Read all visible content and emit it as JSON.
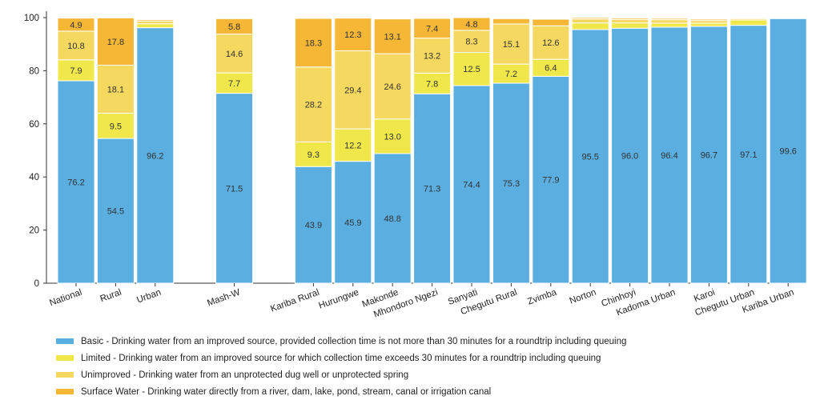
{
  "chart_data": {
    "type": "bar",
    "stacked": true,
    "ylim": [
      0,
      100
    ],
    "yticks": [
      0,
      20,
      40,
      60,
      80,
      100
    ],
    "grid": false,
    "legend_position": "bottom",
    "groups": [
      [
        "National",
        "Rural",
        "Urban"
      ],
      [
        "Mash-W"
      ],
      [
        "Kariba Rural",
        "Hurungwe",
        "Makonde",
        "Mhondoro Ngezi",
        "Sanyati",
        "Chegutu Rural",
        "Zvimba",
        "Norton",
        "Chinhoyi",
        "Kadoma Urban",
        "Karoi",
        "Chegutu Urban",
        "Kariba Urban"
      ]
    ],
    "categories": [
      "National",
      "Rural",
      "Urban",
      "Mash-W",
      "Kariba Rural",
      "Hurungwe",
      "Makonde",
      "Mhondoro Ngezi",
      "Sanyati",
      "Chegutu Rural",
      "Zvimba",
      "Norton",
      "Chinhoyi",
      "Kadoma Urban",
      "Karoi",
      "Chegutu Urban",
      "Kariba Urban"
    ],
    "series": [
      {
        "name": "Basic - Drinking water from an improved source, provided collection time is not more than 30 minutes for a roundtrip including queuing",
        "color": "#5aaee0",
        "values": [
          76.2,
          54.5,
          96.2,
          71.5,
          43.9,
          45.9,
          48.8,
          71.3,
          74.4,
          75.3,
          77.9,
          95.5,
          96.0,
          96.4,
          96.7,
          97.1,
          99.6
        ]
      },
      {
        "name": "Limited - Drinking water from an improved source for which collection time exceeds 30 minutes for a roundtrip including queuing",
        "color": "#f0e84a",
        "values": [
          7.9,
          9.5,
          1.5,
          7.7,
          9.3,
          12.2,
          13.0,
          7.8,
          12.5,
          7.2,
          6.4,
          2.5,
          2.0,
          1.5,
          1.2,
          2.0,
          0.0
        ]
      },
      {
        "name": "Unimproved - Drinking water from an unprotected dug well or unprotected spring",
        "color": "#f5d860",
        "values": [
          10.8,
          18.1,
          1.0,
          14.6,
          28.2,
          29.4,
          24.6,
          13.2,
          8.3,
          15.1,
          12.6,
          1.5,
          1.3,
          1.3,
          1.0,
          0.5,
          0.0
        ]
      },
      {
        "name": "Surface Water - Drinking water directly from a river, dam, lake, pond, stream, canal or irrigation canal",
        "color": "#f5b735",
        "values": [
          4.9,
          17.8,
          0.5,
          5.8,
          18.3,
          12.3,
          13.1,
          7.4,
          4.8,
          2.0,
          2.5,
          0.5,
          0.5,
          0.5,
          0.5,
          0.0,
          0.0
        ]
      }
    ],
    "labeled": [
      [
        true,
        true,
        true,
        true,
        true,
        true,
        true,
        true,
        true,
        true,
        true,
        true,
        true,
        true,
        true,
        true,
        true
      ],
      [
        true,
        true,
        false,
        true,
        true,
        true,
        true,
        true,
        true,
        true,
        true,
        false,
        false,
        false,
        false,
        false,
        false
      ],
      [
        true,
        true,
        false,
        true,
        true,
        true,
        true,
        true,
        true,
        true,
        true,
        false,
        false,
        false,
        false,
        false,
        false
      ],
      [
        true,
        true,
        false,
        true,
        true,
        true,
        true,
        true,
        true,
        false,
        false,
        false,
        false,
        false,
        false,
        false,
        false
      ]
    ]
  }
}
